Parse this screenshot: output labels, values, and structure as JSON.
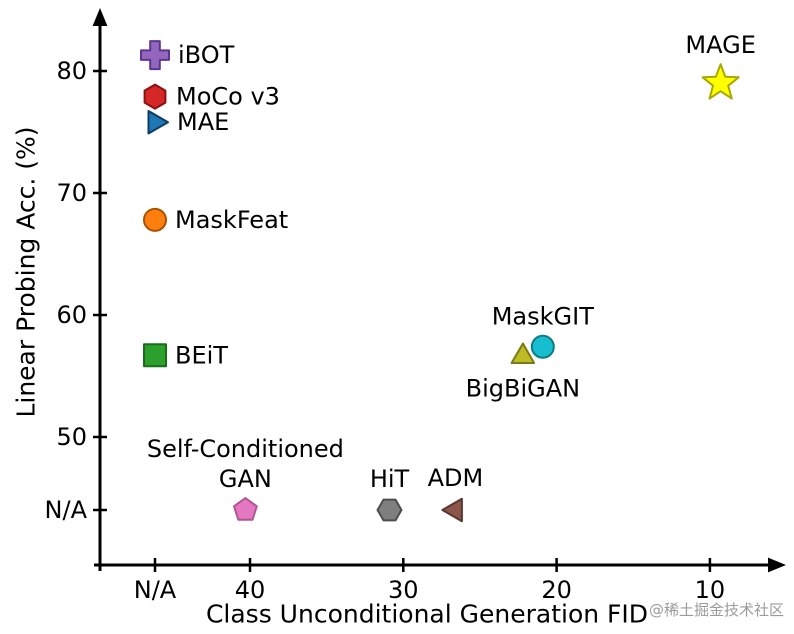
{
  "watermark": "@稀土掘金技术社区",
  "chart_data": {
    "type": "scatter",
    "xlabel": "Class Unconditional Generation FID",
    "ylabel": "Linear Probing Acc. (%)",
    "x_axis": {
      "ticks": [
        "N/A",
        "40",
        "30",
        "20",
        "10"
      ],
      "reversed": true,
      "range_note": "FID decreases to the right, N/A at far left"
    },
    "y_axis": {
      "ticks": [
        "N/A",
        "50",
        "60",
        "70",
        "80"
      ],
      "range_note": "accuracy increases upward, N/A at bottom"
    },
    "grid": false,
    "legend": "none (labels annotated next to markers)",
    "points": [
      {
        "name": "iBOT",
        "fid": "N/A",
        "acc": 81.3,
        "marker": "plus",
        "color": "#9467bd",
        "edge": "#5c3696",
        "size": 14,
        "label_lines": [
          "iBOT"
        ],
        "label_pos": "right"
      },
      {
        "name": "MoCo v3",
        "fid": "N/A",
        "acc": 77.9,
        "marker": "hexagon",
        "color": "#d62728",
        "edge": "#8b1010",
        "size": 12,
        "label_lines": [
          "MoCo v3"
        ],
        "label_pos": "right"
      },
      {
        "name": "MAE",
        "fid": "N/A",
        "acc": 75.8,
        "marker": "triangle-right",
        "color": "#1f77b4",
        "edge": "#0d3d66",
        "size": 13,
        "label_lines": [
          "MAE"
        ],
        "label_pos": "right"
      },
      {
        "name": "MaskFeat",
        "fid": "N/A",
        "acc": 67.8,
        "marker": "circle",
        "color": "#ff7f0e",
        "edge": "#a85200",
        "size": 11,
        "label_lines": [
          "MaskFeat"
        ],
        "label_pos": "right"
      },
      {
        "name": "BEiT",
        "fid": "N/A",
        "acc": 56.7,
        "marker": "square",
        "color": "#2ca02c",
        "edge": "#1a6b1a",
        "size": 11,
        "label_lines": [
          "BEiT"
        ],
        "label_pos": "right"
      },
      {
        "name": "BigBiGAN",
        "fid": 22.2,
        "acc": 56.6,
        "marker": "triangle-up",
        "color": "#bcbd22",
        "edge": "#7a7b16",
        "size": 13,
        "label_lines": [
          "BigBiGAN"
        ],
        "label_pos": "below"
      },
      {
        "name": "MaskGIT",
        "fid": 20.9,
        "acc": 57.4,
        "marker": "circle",
        "color": "#17becf",
        "edge": "#0e7a85",
        "size": 11,
        "label_lines": [
          "MaskGIT"
        ],
        "label_pos": "above"
      },
      {
        "name": "MAGE",
        "fid": 9.3,
        "acc": 79.0,
        "marker": "star",
        "color": "#ffff00",
        "edge": "#a8a800",
        "size": 19,
        "label_lines": [
          "MAGE"
        ],
        "label_pos": "above"
      },
      {
        "name": "Self-Conditioned GAN",
        "fid": 40.3,
        "acc": "N/A",
        "marker": "pentagon",
        "color": "#e377c2",
        "edge": "#b05594",
        "size": 12,
        "label_lines": [
          "Self-Conditioned",
          "GAN"
        ],
        "label_pos": "above"
      },
      {
        "name": "HiT",
        "fid": 30.9,
        "acc": "N/A",
        "marker": "hexagon-flat",
        "color": "#7f7f7f",
        "edge": "#4d4d4d",
        "size": 12,
        "label_lines": [
          "HiT"
        ],
        "label_pos": "above"
      },
      {
        "name": "ADM",
        "fid": 26.6,
        "acc": "N/A",
        "marker": "triangle-left",
        "color": "#8c564b",
        "edge": "#5a372f",
        "size": 13,
        "label_lines": [
          "ADM"
        ],
        "label_pos": "above"
      }
    ]
  }
}
